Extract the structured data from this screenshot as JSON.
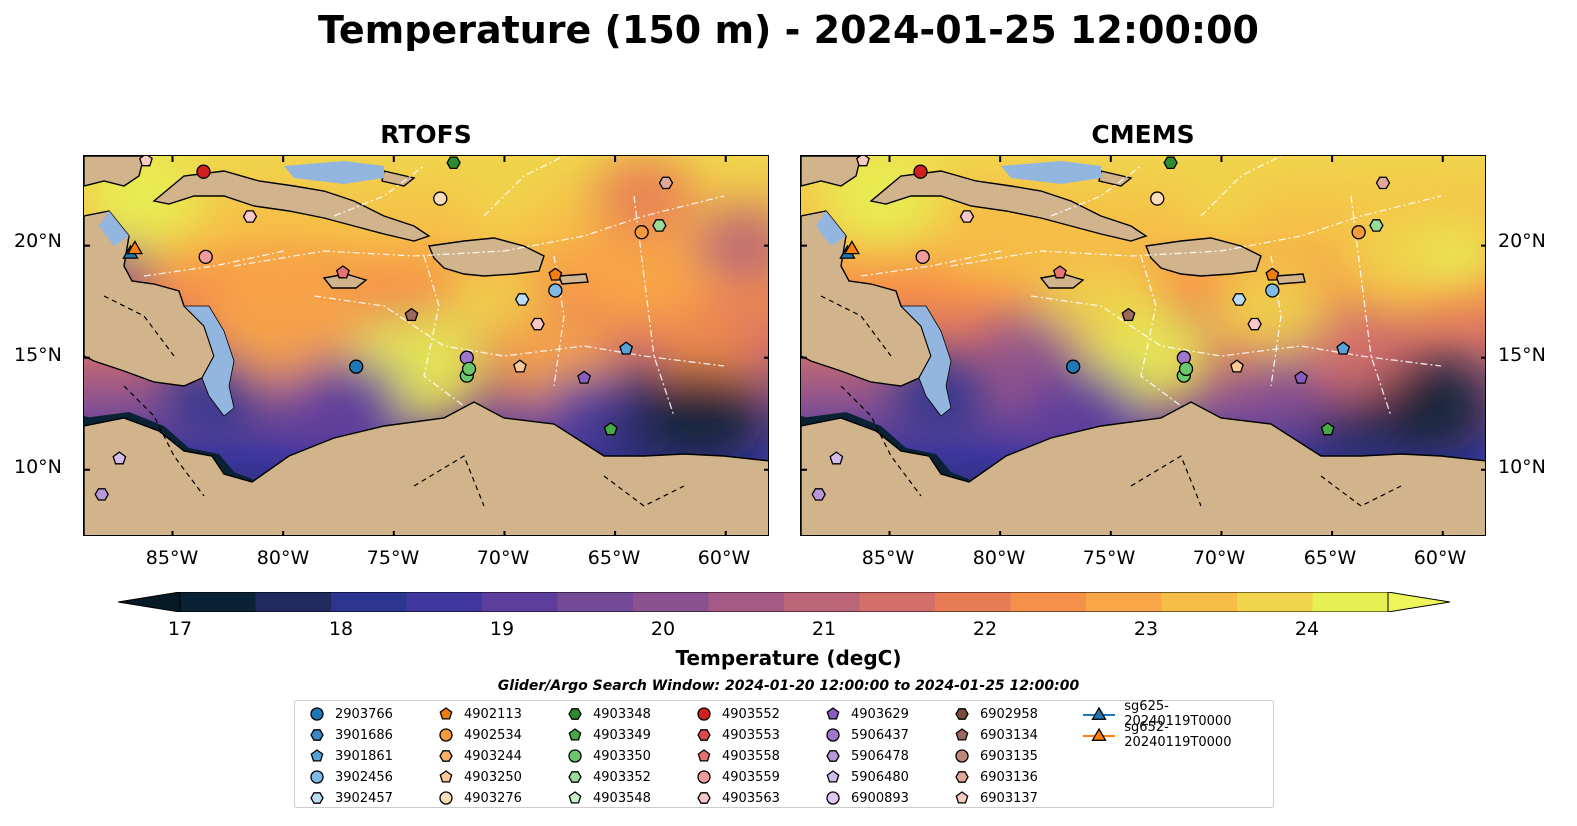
{
  "title": "Temperature (150 m) - 2024-01-25 12:00:00",
  "panels": [
    {
      "title": "RTOFS"
    },
    {
      "title": "CMEMS"
    }
  ],
  "axes": {
    "lat_labels": [
      "20°N",
      "15°N",
      "10°N"
    ],
    "lon_labels": [
      "85°W",
      "80°W",
      "75°W",
      "70°W",
      "65°W",
      "60°W"
    ],
    "lon_range": [
      -89.0,
      -58.0
    ],
    "lat_range": [
      7.0,
      24.0
    ]
  },
  "colorbar": {
    "label": "Temperature (degC)",
    "ticks": [
      "17",
      "18",
      "19",
      "20",
      "21",
      "22",
      "23",
      "24"
    ],
    "range": [
      16.75,
      24.75
    ],
    "colors": [
      "#0a2233",
      "#202a5e",
      "#2c3590",
      "#40379f",
      "#5d3e9c",
      "#744a96",
      "#8b5290",
      "#a35a86",
      "#bb6579",
      "#d26f6a",
      "#e77b56",
      "#f5904a",
      "#f8a647",
      "#f6bd47",
      "#f0d44c",
      "#e7f052"
    ]
  },
  "legend": {
    "title": "Glider/Argo Search Window: 2024-01-20 12:00:00 to 2024-01-25 12:00:00",
    "entries": [
      {
        "label": "2903766",
        "color": "#1f77b4",
        "marker": "circle"
      },
      {
        "label": "3901686",
        "color": "#3a87c4",
        "marker": "hexagon"
      },
      {
        "label": "3901861",
        "color": "#57a0d8",
        "marker": "pentagon"
      },
      {
        "label": "3902456",
        "color": "#7fbbe6",
        "marker": "circle"
      },
      {
        "label": "3902457",
        "color": "#b9dcf3",
        "marker": "hexagon"
      },
      {
        "label": "4902113",
        "color": "#f07d0f",
        "marker": "pentagon"
      },
      {
        "label": "4902534",
        "color": "#f5993a",
        "marker": "circle"
      },
      {
        "label": "4903244",
        "color": "#f8b266",
        "marker": "hexagon"
      },
      {
        "label": "4903250",
        "color": "#fbc896",
        "marker": "pentagon"
      },
      {
        "label": "4903276",
        "color": "#fddcba",
        "marker": "circle"
      },
      {
        "label": "4903348",
        "color": "#2e8b2e",
        "marker": "hexagon"
      },
      {
        "label": "4903349",
        "color": "#47a847",
        "marker": "pentagon"
      },
      {
        "label": "4903350",
        "color": "#6cc76c",
        "marker": "circle"
      },
      {
        "label": "4903352",
        "color": "#98dc98",
        "marker": "hexagon"
      },
      {
        "label": "4903548",
        "color": "#c8f0c8",
        "marker": "pentagon"
      },
      {
        "label": "4903552",
        "color": "#d21f1f",
        "marker": "circle"
      },
      {
        "label": "4903553",
        "color": "#dd4a4a",
        "marker": "hexagon"
      },
      {
        "label": "4903558",
        "color": "#e67272",
        "marker": "pentagon"
      },
      {
        "label": "4903559",
        "color": "#f09c9c",
        "marker": "circle"
      },
      {
        "label": "4903563",
        "color": "#f8c8c8",
        "marker": "hexagon"
      },
      {
        "label": "4903629",
        "color": "#8a5cc0",
        "marker": "pentagon"
      },
      {
        "label": "5906437",
        "color": "#9f78cc",
        "marker": "circle"
      },
      {
        "label": "5906478",
        "color": "#b898db",
        "marker": "hexagon"
      },
      {
        "label": "5906480",
        "color": "#d2bceb",
        "marker": "pentagon"
      },
      {
        "label": "6900893",
        "color": "#e0c6f5",
        "marker": "circle"
      },
      {
        "label": "6902958",
        "color": "#7a4d3e",
        "marker": "hexagon"
      },
      {
        "label": "6903134",
        "color": "#9b6a5a",
        "marker": "pentagon"
      },
      {
        "label": "6903135",
        "color": "#bd8878",
        "marker": "circle"
      },
      {
        "label": "6903136",
        "color": "#e0a898",
        "marker": "hexagon"
      },
      {
        "label": "6903137",
        "color": "#f6ccc0",
        "marker": "pentagon"
      },
      {
        "label": "sg625-20240119T0000",
        "color": "#1f77b4",
        "marker": "triangle"
      },
      {
        "label": "sg652-20240119T0000",
        "color": "#ff7f0e",
        "marker": "triangle"
      }
    ]
  },
  "floats": [
    {
      "color": "#1f77b4",
      "marker": "circle",
      "lon": -76.7,
      "lat": 14.6
    },
    {
      "color": "#7fbbe6",
      "marker": "circle",
      "lon": -67.7,
      "lat": 18.0
    },
    {
      "color": "#b9dcf3",
      "marker": "hexagon",
      "lon": -69.2,
      "lat": 17.6
    },
    {
      "color": "#57a0d8",
      "marker": "pentagon",
      "lon": -64.5,
      "lat": 15.4
    },
    {
      "color": "#f07d0f",
      "marker": "pentagon",
      "lon": -67.7,
      "lat": 18.7
    },
    {
      "color": "#f5993a",
      "marker": "circle",
      "lon": -63.8,
      "lat": 20.6
    },
    {
      "color": "#fddcba",
      "marker": "circle",
      "lon": -72.9,
      "lat": 22.1
    },
    {
      "color": "#2e8b2e",
      "marker": "hexagon",
      "lon": -72.3,
      "lat": 23.7
    },
    {
      "color": "#47a847",
      "marker": "pentagon",
      "lon": -65.2,
      "lat": 11.8
    },
    {
      "color": "#6cc76c",
      "marker": "circle",
      "lon": -71.7,
      "lat": 14.2
    },
    {
      "color": "#98dc98",
      "marker": "hexagon",
      "lon": -63.0,
      "lat": 20.9
    },
    {
      "color": "#d21f1f",
      "marker": "circle",
      "lon": -83.6,
      "lat": 23.3
    },
    {
      "color": "#e67272",
      "marker": "pentagon",
      "lon": -77.3,
      "lat": 18.8
    },
    {
      "color": "#f09c9c",
      "marker": "circle",
      "lon": -83.5,
      "lat": 19.5
    },
    {
      "color": "#f8c8c8",
      "marker": "hexagon",
      "lon": -81.5,
      "lat": 21.3
    },
    {
      "color": "#f8c8c8",
      "marker": "hexagon",
      "lon": -68.5,
      "lat": 16.5
    },
    {
      "color": "#8a5cc0",
      "marker": "pentagon",
      "lon": -66.4,
      "lat": 14.1
    },
    {
      "color": "#9f78cc",
      "marker": "circle",
      "lon": -71.7,
      "lat": 15.0
    },
    {
      "color": "#b898db",
      "marker": "hexagon",
      "lon": -88.2,
      "lat": 8.9
    },
    {
      "color": "#d2bceb",
      "marker": "pentagon",
      "lon": -87.4,
      "lat": 10.5
    },
    {
      "color": "#9b6a5a",
      "marker": "pentagon",
      "lon": -74.2,
      "lat": 16.9
    },
    {
      "color": "#e0a898",
      "marker": "hexagon",
      "lon": -62.7,
      "lat": 22.8
    },
    {
      "color": "#fbc896",
      "marker": "pentagon",
      "lon": -69.3,
      "lat": 14.6
    },
    {
      "color": "#f6ccc0",
      "marker": "pentagon",
      "lon": -86.2,
      "lat": 23.8
    },
    {
      "color": "#6cc76c",
      "marker": "circle",
      "lon": -71.6,
      "lat": 14.5
    },
    {
      "color": "#1f77b4",
      "marker": "triangle",
      "lon": -86.9,
      "lat": 19.7
    },
    {
      "color": "#ff7f0e",
      "marker": "triangle",
      "lon": -86.7,
      "lat": 19.9
    }
  ]
}
